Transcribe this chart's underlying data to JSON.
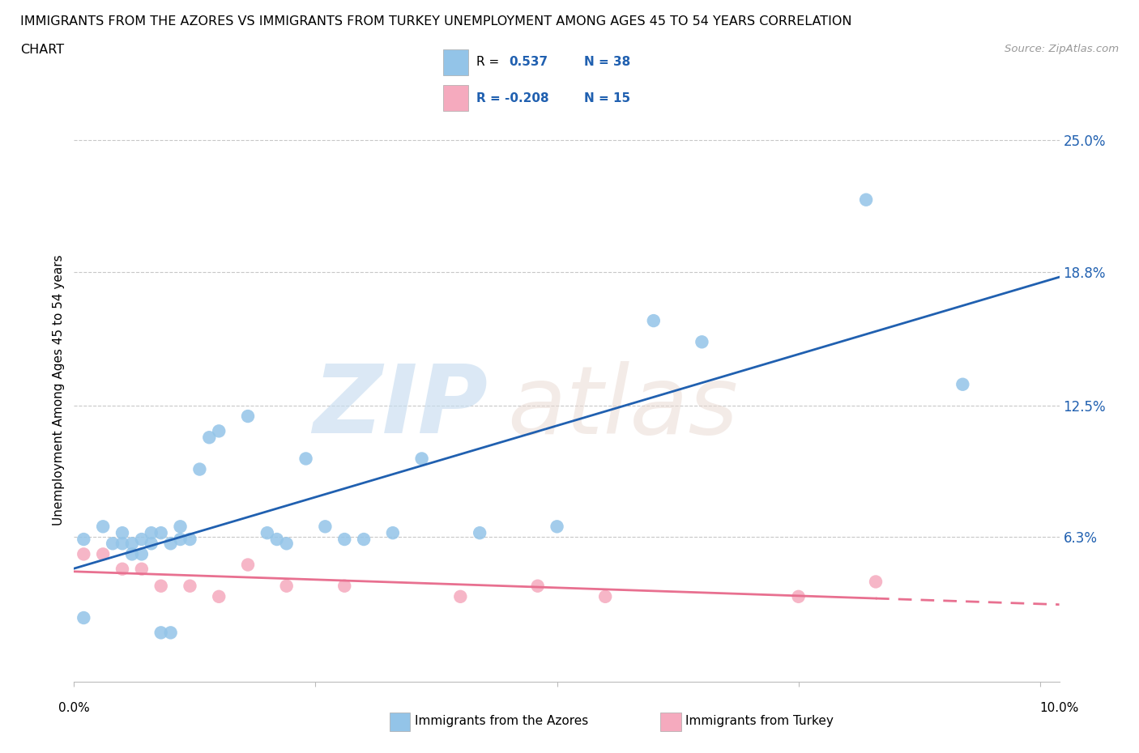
{
  "title_line1": "IMMIGRANTS FROM THE AZORES VS IMMIGRANTS FROM TURKEY UNEMPLOYMENT AMONG AGES 45 TO 54 YEARS CORRELATION",
  "title_line2": "CHART",
  "source": "Source: ZipAtlas.com",
  "ylabel": "Unemployment Among Ages 45 to 54 years",
  "ytick_labels": [
    "6.3%",
    "12.5%",
    "18.8%",
    "25.0%"
  ],
  "ytick_values": [
    0.063,
    0.125,
    0.188,
    0.25
  ],
  "xlim": [
    0.0,
    0.102
  ],
  "ylim": [
    -0.005,
    0.27
  ],
  "azores_color": "#93c4e8",
  "turkey_color": "#f5aabe",
  "azores_line_color": "#2060b0",
  "turkey_line_color": "#e87090",
  "background_color": "#ffffff",
  "grid_color": "#c8c8c8",
  "legend_label1": "Immigrants from the Azores",
  "legend_label2": "Immigrants from Turkey",
  "azores_x": [
    0.001,
    0.003,
    0.004,
    0.005,
    0.005,
    0.006,
    0.006,
    0.007,
    0.007,
    0.008,
    0.008,
    0.009,
    0.009,
    0.01,
    0.01,
    0.011,
    0.011,
    0.012,
    0.013,
    0.014,
    0.015,
    0.018,
    0.02,
    0.021,
    0.022,
    0.024,
    0.026,
    0.028,
    0.03,
    0.033,
    0.036,
    0.042,
    0.05,
    0.06,
    0.065,
    0.082,
    0.092,
    0.001
  ],
  "azores_y": [
    0.062,
    0.068,
    0.06,
    0.06,
    0.065,
    0.055,
    0.06,
    0.062,
    0.055,
    0.06,
    0.065,
    0.065,
    0.018,
    0.06,
    0.018,
    0.068,
    0.062,
    0.062,
    0.095,
    0.11,
    0.113,
    0.12,
    0.065,
    0.062,
    0.06,
    0.1,
    0.068,
    0.062,
    0.062,
    0.065,
    0.1,
    0.065,
    0.068,
    0.165,
    0.155,
    0.222,
    0.135,
    0.025
  ],
  "turkey_x": [
    0.001,
    0.003,
    0.005,
    0.007,
    0.009,
    0.012,
    0.015,
    0.018,
    0.022,
    0.028,
    0.04,
    0.048,
    0.055,
    0.075,
    0.083
  ],
  "turkey_y": [
    0.055,
    0.055,
    0.048,
    0.048,
    0.04,
    0.04,
    0.035,
    0.05,
    0.04,
    0.04,
    0.035,
    0.04,
    0.035,
    0.035,
    0.042
  ]
}
